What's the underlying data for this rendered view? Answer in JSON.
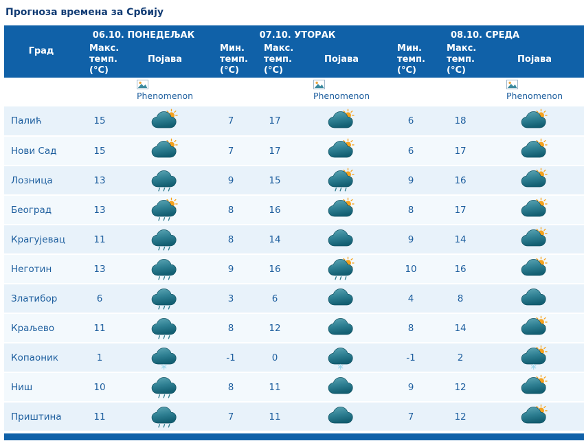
{
  "page": {
    "title": "Прогноза времена за Србију"
  },
  "table": {
    "day_headers": [
      {
        "label": "06.10. ПОНЕДЕЉАК"
      },
      {
        "label": "07.10. УТОРАК"
      },
      {
        "label": "08.10. СРЕДА"
      }
    ],
    "col_headers": {
      "city": "Град",
      "min_temp": "Мин.\nтемп.\n(°C)",
      "max_temp": "Макс.\nтемп.\n(°C)",
      "phenomenon": "Појава"
    },
    "phenomenon_alt": "Phenomenon",
    "rows": [
      {
        "city": "Палић",
        "d1": {
          "max": "15",
          "icon": "sun-cloud"
        },
        "d2": {
          "min": "7",
          "max": "17",
          "icon": "sun-cloud"
        },
        "d3": {
          "min": "6",
          "max": "18",
          "icon": "sun-cloud"
        }
      },
      {
        "city": "Нови Сад",
        "d1": {
          "max": "15",
          "icon": "sun-cloud"
        },
        "d2": {
          "min": "7",
          "max": "17",
          "icon": "sun-cloud"
        },
        "d3": {
          "min": "6",
          "max": "17",
          "icon": "sun-cloud"
        }
      },
      {
        "city": "Лозница",
        "d1": {
          "max": "13",
          "icon": "rain"
        },
        "d2": {
          "min": "9",
          "max": "15",
          "icon": "sun-rain"
        },
        "d3": {
          "min": "9",
          "max": "16",
          "icon": "sun-cloud"
        }
      },
      {
        "city": "Београд",
        "d1": {
          "max": "13",
          "icon": "sun-rain"
        },
        "d2": {
          "min": "8",
          "max": "16",
          "icon": "sun-cloud"
        },
        "d3": {
          "min": "8",
          "max": "17",
          "icon": "sun-cloud"
        }
      },
      {
        "city": "Крагујевац",
        "d1": {
          "max": "11",
          "icon": "rain"
        },
        "d2": {
          "min": "8",
          "max": "14",
          "icon": "cloud"
        },
        "d3": {
          "min": "9",
          "max": "14",
          "icon": "sun-cloud"
        }
      },
      {
        "city": "Неготин",
        "d1": {
          "max": "13",
          "icon": "rain"
        },
        "d2": {
          "min": "9",
          "max": "16",
          "icon": "sun-rain"
        },
        "d3": {
          "min": "10",
          "max": "16",
          "icon": "sun-cloud"
        }
      },
      {
        "city": "Златибор",
        "d1": {
          "max": "6",
          "icon": "rain"
        },
        "d2": {
          "min": "3",
          "max": "6",
          "icon": "cloud"
        },
        "d3": {
          "min": "4",
          "max": "8",
          "icon": "cloud"
        }
      },
      {
        "city": "Краљево",
        "d1": {
          "max": "11",
          "icon": "rain"
        },
        "d2": {
          "min": "8",
          "max": "12",
          "icon": "cloud"
        },
        "d3": {
          "min": "8",
          "max": "14",
          "icon": "sun-cloud"
        }
      },
      {
        "city": "Копаоник",
        "d1": {
          "max": "1",
          "icon": "snow"
        },
        "d2": {
          "min": "-1",
          "max": "0",
          "icon": "snow"
        },
        "d3": {
          "min": "-1",
          "max": "2",
          "icon": "sun-snow"
        }
      },
      {
        "city": "Ниш",
        "d1": {
          "max": "10",
          "icon": "rain"
        },
        "d2": {
          "min": "8",
          "max": "11",
          "icon": "cloud"
        },
        "d3": {
          "min": "9",
          "max": "12",
          "icon": "sun-cloud"
        }
      },
      {
        "city": "Приштина",
        "d1": {
          "max": "11",
          "icon": "rain"
        },
        "d2": {
          "min": "7",
          "max": "11",
          "icon": "cloud"
        },
        "d3": {
          "min": "7",
          "max": "12",
          "icon": "sun-cloud"
        }
      }
    ]
  },
  "colors": {
    "header_blue": "#1061a8",
    "title_blue": "#123c74",
    "text_blue": "#1d5e9e",
    "row_odd": "#e8f2fa",
    "row_even": "#f3f9fd",
    "cloud_dark": "#135f72",
    "cloud_light": "#5fa8b6",
    "sun_orange": "#f6a21d",
    "snow_blue": "#9fd8ec"
  }
}
